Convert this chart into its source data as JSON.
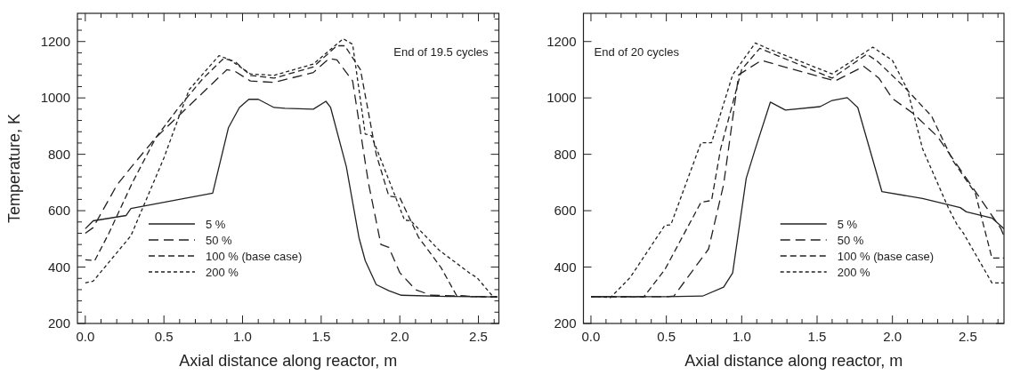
{
  "chart_data": [
    {
      "type": "line",
      "xlabel": "Axial distance along reactor, m",
      "ylabel": "Temperature, K",
      "annotations": [
        "End of 19.5 cycles"
      ],
      "legend": "bottom left",
      "xlim": [
        -0.05,
        2.63
      ],
      "ylim": [
        200,
        1300
      ],
      "xticks": [
        {
          "value": 0,
          "label": "0.0"
        },
        {
          "value": 0.1,
          "label": null
        },
        {
          "value": 0.2,
          "label": null
        },
        {
          "value": 0.3,
          "label": null
        },
        {
          "value": 0.4,
          "label": null
        },
        {
          "value": 0.5,
          "label": "0.5"
        },
        {
          "value": 0.6,
          "label": null
        },
        {
          "value": 0.7,
          "label": null
        },
        {
          "value": 0.8,
          "label": null
        },
        {
          "value": 0.9,
          "label": null
        },
        {
          "value": 1,
          "label": "1.0"
        },
        {
          "value": 1.1,
          "label": null
        },
        {
          "value": 1.2,
          "label": null
        },
        {
          "value": 1.3,
          "label": null
        },
        {
          "value": 1.4,
          "label": null
        },
        {
          "value": 1.5,
          "label": "1.5"
        },
        {
          "value": 1.6,
          "label": null
        },
        {
          "value": 1.7,
          "label": null
        },
        {
          "value": 1.8,
          "label": null
        },
        {
          "value": 1.9,
          "label": null
        },
        {
          "value": 2,
          "label": "2.0"
        },
        {
          "value": 2.1,
          "label": null
        },
        {
          "value": 2.2,
          "label": null
        },
        {
          "value": 2.3,
          "label": null
        },
        {
          "value": 2.4,
          "label": null
        },
        {
          "value": 2.5,
          "label": "2.5"
        },
        {
          "value": 2.6,
          "label": null
        }
      ],
      "yticks": [
        200,
        {
          "value": 240,
          "label": null
        },
        {
          "value": 280,
          "label": null
        },
        {
          "value": 320,
          "label": null
        },
        {
          "value": 360,
          "label": null
        },
        400,
        {
          "value": 440,
          "label": null
        },
        {
          "value": 480,
          "label": null
        },
        {
          "value": 520,
          "label": null
        },
        {
          "value": 560,
          "label": null
        },
        600,
        {
          "value": 640,
          "label": null
        },
        {
          "value": 680,
          "label": null
        },
        {
          "value": 720,
          "label": null
        },
        {
          "value": 760,
          "label": null
        },
        800,
        {
          "value": 840,
          "label": null
        },
        {
          "value": 880,
          "label": null
        },
        {
          "value": 920,
          "label": null
        },
        {
          "value": 960,
          "label": null
        },
        1000,
        {
          "value": 1040,
          "label": null
        },
        {
          "value": 1080,
          "label": null
        },
        {
          "value": 1120,
          "label": null
        },
        {
          "value": 1160,
          "label": null
        },
        1200,
        {
          "value": 1240,
          "label": null
        },
        {
          "value": 1280,
          "label": null
        }
      ],
      "series": [
        {
          "name": "5 %",
          "color": "#222222",
          "line_style": "solid",
          "x": [
            0,
            0.05,
            0.26,
            0.29,
            0.5,
            0.81,
            0.91,
            0.98,
            1.04,
            1.1,
            1.2,
            1.27,
            1.45,
            1.53,
            1.56,
            1.66,
            1.74,
            1.78,
            1.85,
            1.93,
            2.01,
            2.3,
            2.62
          ],
          "values": [
            536,
            564,
            583,
            608,
            630,
            662,
            894,
            966,
            995,
            995,
            966,
            963,
            960,
            988,
            966,
            756,
            505,
            423,
            338,
            316,
            300,
            296,
            294
          ]
        },
        {
          "name": "50 %",
          "color": "#222222",
          "line_style": "dashed",
          "x": [
            0,
            0.05,
            0.2,
            0.3,
            0.45,
            0.6,
            0.75,
            0.9,
            0.95,
            1.05,
            1.2,
            1.45,
            1.55,
            1.6,
            1.7,
            1.8,
            1.88,
            1.93,
            2.0,
            2.1,
            2.2,
            2.62
          ],
          "values": [
            520,
            540,
            690,
            760,
            860,
            940,
            1020,
            1100,
            1095,
            1060,
            1055,
            1090,
            1140,
            1135,
            1060,
            700,
            480,
            470,
            380,
            320,
            300,
            294
          ]
        },
        {
          "name": "100 % (base case)",
          "color": "#222222",
          "line_style": "dashed",
          "x": [
            0,
            0.06,
            0.15,
            0.3,
            0.45,
            0.6,
            0.75,
            0.88,
            0.95,
            1.05,
            1.2,
            1.45,
            1.6,
            1.65,
            1.75,
            1.85,
            1.93,
            2.0,
            2.12,
            2.26,
            2.36,
            2.45,
            2.62
          ],
          "values": [
            426,
            423,
            520,
            700,
            860,
            970,
            1070,
            1140,
            1130,
            1080,
            1070,
            1110,
            1185,
            1185,
            1100,
            800,
            652,
            646,
            505,
            400,
            300,
            295,
            294
          ]
        },
        {
          "name": "200 %",
          "color": "#222222",
          "line_style": "dotted",
          "x": [
            0,
            0.05,
            0.29,
            0.5,
            0.59,
            0.66,
            0.85,
            0.92,
            1.05,
            1.2,
            1.45,
            1.64,
            1.7,
            1.78,
            1.82,
            2.03,
            2.07,
            2.25,
            2.45,
            2.49,
            2.59,
            2.62
          ],
          "values": [
            344,
            350,
            511,
            787,
            925,
            1029,
            1150,
            1135,
            1085,
            1080,
            1120,
            1210,
            1190,
            872,
            866,
            567,
            564,
            460,
            376,
            363,
            297,
            294
          ]
        }
      ]
    },
    {
      "type": "line",
      "xlabel": "Axial distance along reactor, m",
      "annotations": [
        "End of 20 cycles"
      ],
      "legend": "bottom",
      "xlim": [
        -0.05,
        2.74
      ],
      "ylim": [
        200,
        1300
      ],
      "xticks": [
        {
          "value": 0,
          "label": "0.0"
        },
        {
          "value": 0.1,
          "label": null
        },
        {
          "value": 0.2,
          "label": null
        },
        {
          "value": 0.3,
          "label": null
        },
        {
          "value": 0.4,
          "label": null
        },
        {
          "value": 0.5,
          "label": "0.5"
        },
        {
          "value": 0.6,
          "label": null
        },
        {
          "value": 0.7,
          "label": null
        },
        {
          "value": 0.8,
          "label": null
        },
        {
          "value": 0.9,
          "label": null
        },
        {
          "value": 1,
          "label": "1.0"
        },
        {
          "value": 1.1,
          "label": null
        },
        {
          "value": 1.2,
          "label": null
        },
        {
          "value": 1.3,
          "label": null
        },
        {
          "value": 1.4,
          "label": null
        },
        {
          "value": 1.5,
          "label": "1.5"
        },
        {
          "value": 1.6,
          "label": null
        },
        {
          "value": 1.7,
          "label": null
        },
        {
          "value": 1.8,
          "label": null
        },
        {
          "value": 1.9,
          "label": null
        },
        {
          "value": 2,
          "label": "2.0"
        },
        {
          "value": 2.1,
          "label": null
        },
        {
          "value": 2.2,
          "label": null
        },
        {
          "value": 2.3,
          "label": null
        },
        {
          "value": 2.4,
          "label": null
        },
        {
          "value": 2.5,
          "label": "2.5"
        },
        {
          "value": 2.6,
          "label": null
        },
        {
          "value": 2.7,
          "label": null
        }
      ],
      "yticks": [
        200,
        400,
        600,
        800,
        1000,
        1200
      ],
      "series": [
        {
          "name": "5 %",
          "color": "#222222",
          "line_style": "solid",
          "x": [
            0,
            0.5,
            0.74,
            0.88,
            0.94,
            1.03,
            1.09,
            1.19,
            1.29,
            1.52,
            1.6,
            1.7,
            1.77,
            1.93,
            2.2,
            2.45,
            2.49,
            2.66,
            2.74
          ],
          "values": [
            295,
            295,
            297,
            329,
            379,
            715,
            819,
            985,
            957,
            969,
            991,
            1001,
            966,
            668,
            643,
            611,
            596,
            574,
            536
          ]
        },
        {
          "name": "50 %",
          "color": "#222222",
          "line_style": "dashed",
          "x": [
            0,
            0.5,
            0.55,
            0.78,
            0.88,
            0.98,
            1.13,
            1.62,
            1.81,
            1.91,
            2.0,
            2.14,
            2.3,
            2.49,
            2.72,
            2.74
          ],
          "values": [
            295,
            295,
            297,
            464,
            693,
            1082,
            1133,
            1060,
            1112,
            1070,
            998,
            944,
            862,
            715,
            536,
            510
          ]
        },
        {
          "name": "100 % (base case)",
          "color": "#222222",
          "line_style": "dashed",
          "x": [
            0,
            0.35,
            0.49,
            0.73,
            0.8,
            0.86,
            1.0,
            1.12,
            1.6,
            1.83,
            1.9,
            2.08,
            2.26,
            2.4,
            2.55,
            2.66,
            2.74
          ],
          "values": [
            295,
            294,
            391,
            630,
            636,
            819,
            1101,
            1176,
            1070,
            1155,
            1130,
            1038,
            935,
            778,
            662,
            432,
            432
          ]
        },
        {
          "name": "200 %",
          "color": "#222222",
          "line_style": "dotted",
          "x": [
            0,
            0.13,
            0.26,
            0.49,
            0.53,
            0.73,
            0.8,
            0.94,
            1.09,
            1.17,
            1.6,
            1.87,
            2.0,
            2.1,
            2.2,
            2.37,
            2.43,
            2.47,
            2.66,
            2.74
          ],
          "values": [
            295,
            292,
            363,
            548,
            550,
            841,
            841,
            1082,
            1195,
            1176,
            1085,
            1180,
            1133,
            1029,
            819,
            611,
            549,
            521,
            344,
            344
          ]
        }
      ]
    }
  ]
}
